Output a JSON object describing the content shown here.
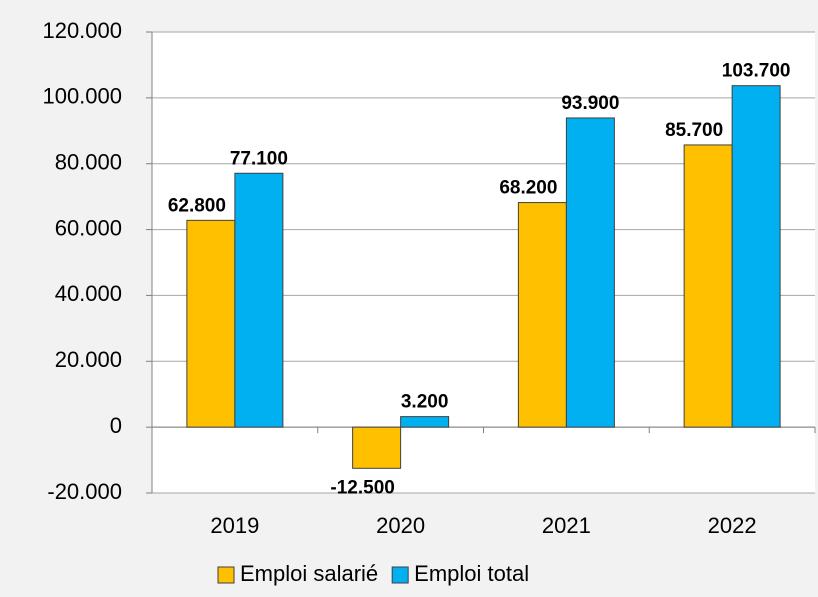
{
  "chart_data": {
    "type": "bar",
    "categories": [
      "2019",
      "2020",
      "2021",
      "2022"
    ],
    "series": [
      {
        "name": "Emploi salarié",
        "color": "#ffc000",
        "values": [
          62800,
          -12500,
          68200,
          85700
        ],
        "value_labels": [
          "62.800",
          "-12.500",
          "68.200",
          "85.700"
        ]
      },
      {
        "name": "Emploi total",
        "color": "#00b0f0",
        "values": [
          77100,
          3200,
          93900,
          103700
        ],
        "value_labels": [
          "77.100",
          "3.200",
          "93.900",
          "103.700"
        ]
      }
    ],
    "ylim": [
      -20000,
      120000
    ],
    "yticks": [
      {
        "value": -20000,
        "label": "-20.000"
      },
      0,
      {
        "value": 20000,
        "label": "20.000"
      },
      {
        "value": 40000,
        "label": "40.000"
      },
      {
        "value": 60000,
        "label": "60.000"
      },
      {
        "value": 80000,
        "label": "80.000"
      },
      {
        "value": 100000,
        "label": "100.000"
      },
      {
        "value": 120000,
        "label": "120.000"
      }
    ],
    "grid": true,
    "legend": "bottom"
  }
}
